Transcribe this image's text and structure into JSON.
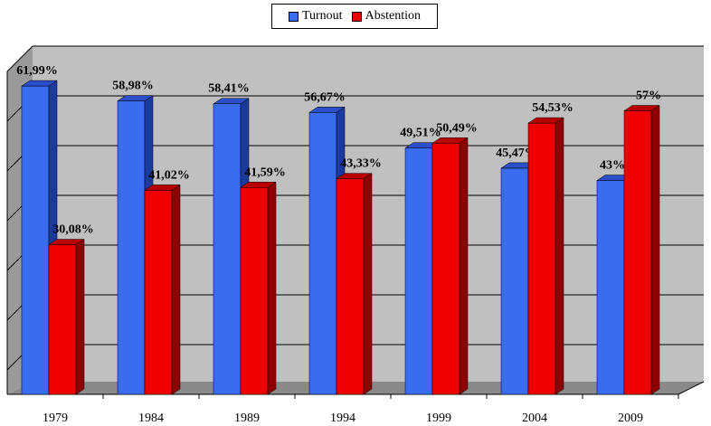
{
  "chart_data": {
    "type": "bar",
    "title": "",
    "xlabel": "",
    "ylabel": "",
    "ylim": [
      0,
      70
    ],
    "grid": true,
    "legend_position": "top-center",
    "categories": [
      "1979",
      "1984",
      "1989",
      "1994",
      "1999",
      "2004",
      "2009"
    ],
    "series": [
      {
        "name": "Turnout",
        "color": "#3a6cf0",
        "values": [
          61.99,
          58.98,
          58.41,
          56.67,
          49.51,
          45.47,
          43
        ],
        "labels": [
          "61,99%",
          "58,98%",
          "58,41%",
          "56,67%",
          "49,51%",
          "45,47%",
          "43%"
        ]
      },
      {
        "name": "Abstention",
        "color": "#ee0000",
        "values": [
          30.08,
          41.02,
          41.59,
          43.33,
          50.49,
          54.53,
          57
        ],
        "labels": [
          "30,08%",
          "41,02%",
          "41,59%",
          "43,33%",
          "50,49%",
          "54,53%",
          "57%"
        ]
      }
    ]
  }
}
